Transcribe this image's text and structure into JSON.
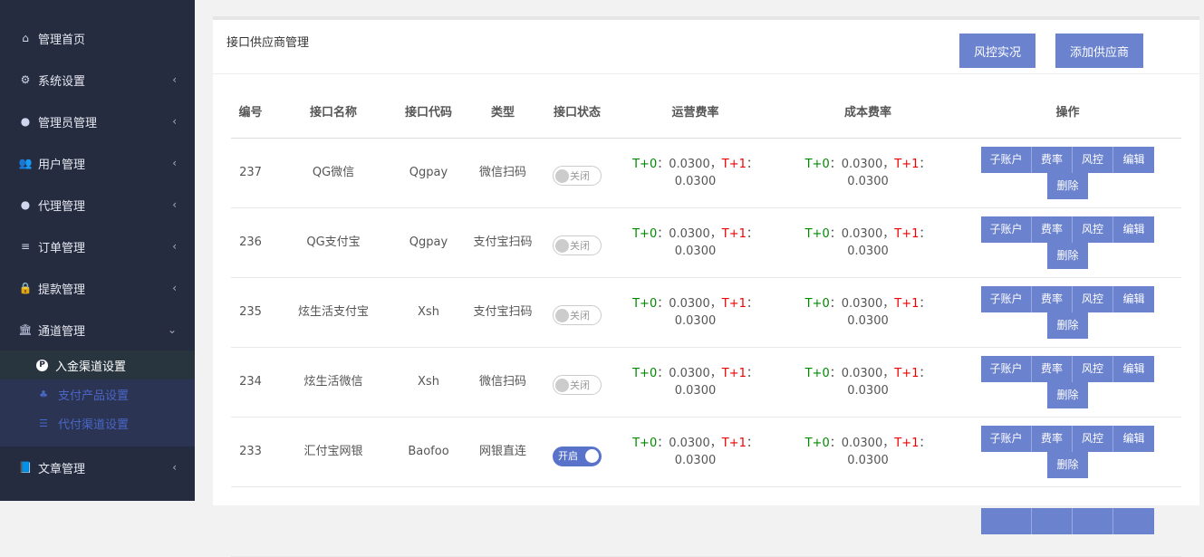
{
  "sidebar": {
    "items": [
      {
        "label": "管理首页",
        "icon": "home-icon",
        "glyph": "⌂",
        "chev": false
      },
      {
        "label": "系统设置",
        "icon": "cogs-icon",
        "glyph": "⚙",
        "chev": true
      },
      {
        "label": "管理员管理",
        "icon": "user-circle-icon",
        "glyph": "●",
        "chev": true
      },
      {
        "label": "用户管理",
        "icon": "users-icon",
        "glyph": "👥",
        "chev": true
      },
      {
        "label": "代理管理",
        "icon": "user-circle-icon",
        "glyph": "●",
        "chev": true
      },
      {
        "label": "订单管理",
        "icon": "list-icon",
        "glyph": "≡",
        "chev": true
      },
      {
        "label": "提款管理",
        "icon": "lock-icon",
        "glyph": "🔒",
        "chev": true
      },
      {
        "label": "通道管理",
        "icon": "bank-icon",
        "glyph": "🏛",
        "chev": "down"
      }
    ],
    "subitems": [
      {
        "label": "入金渠道设置",
        "icon": "p-circle-icon",
        "glyph": "P",
        "active": true
      },
      {
        "label": "支付产品设置",
        "icon": "sitemap-icon",
        "glyph": "♣"
      },
      {
        "label": "代付渠道设置",
        "icon": "sliders-icon",
        "glyph": "☰"
      }
    ],
    "after": {
      "label": "文章管理",
      "icon": "book-icon",
      "glyph": "📘"
    }
  },
  "header": {
    "title": "接口供应商管理",
    "risk_button": "风控实况",
    "add_button": "添加供应商"
  },
  "table": {
    "headers": [
      "编号",
      "接口名称",
      "接口代码",
      "类型",
      "接口状态",
      "运营费率",
      "成本费率",
      "操作"
    ],
    "rows": [
      {
        "id": "237",
        "name": "QG微信",
        "code": "Qgpay",
        "type": "微信扫码",
        "status": "关闭",
        "on": false
      },
      {
        "id": "236",
        "name": "QG支付宝",
        "code": "Qgpay",
        "type": "支付宝扫码",
        "status": "关闭",
        "on": false
      },
      {
        "id": "235",
        "name": "炫生活支付宝",
        "code": "Xsh",
        "type": "支付宝扫码",
        "status": "关闭",
        "on": false
      },
      {
        "id": "234",
        "name": "炫生活微信",
        "code": "Xsh",
        "type": "微信扫码",
        "status": "关闭",
        "on": false
      },
      {
        "id": "233",
        "name": "汇付宝网银",
        "code": "Baofoo",
        "type": "网银直连",
        "status": "开启",
        "on": true
      }
    ],
    "rate": {
      "t0": "T+0",
      "t1": "T+1",
      "sep": "：",
      "comma": "，",
      "value": "0.0300"
    },
    "actions": [
      "子账户",
      "费率",
      "风控",
      "编辑",
      "删除"
    ]
  },
  "colors": {
    "accent": "#6b82cf",
    "t0": "#008800",
    "t1": "#ee0000",
    "sidebar": "#262c40"
  }
}
